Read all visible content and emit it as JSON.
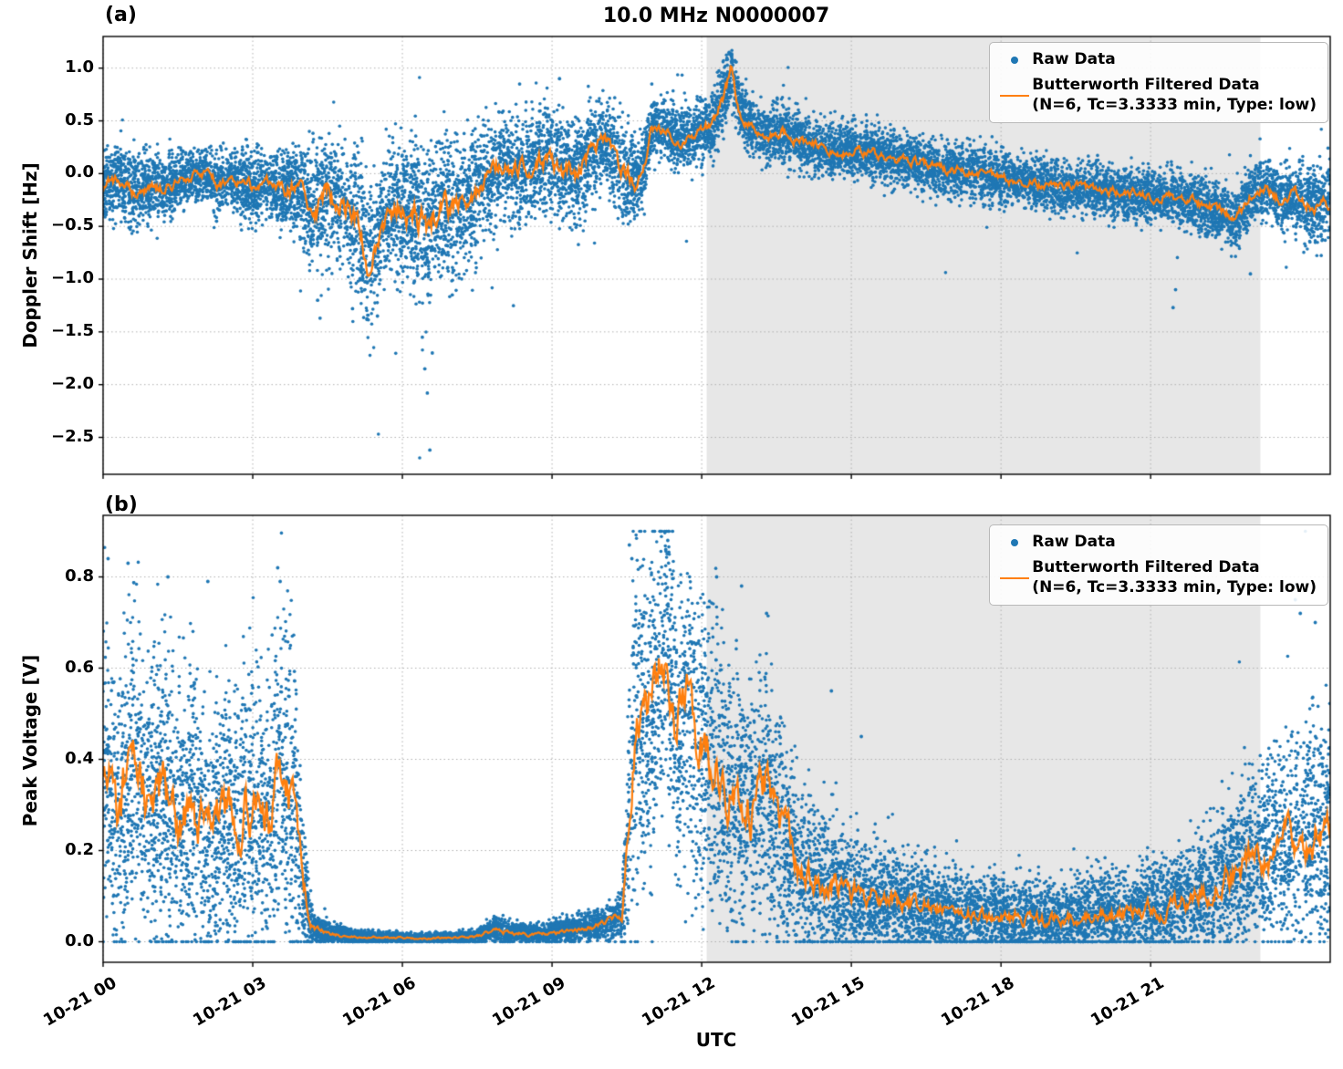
{
  "title": "10.0 MHz N0000007",
  "xlabel": "UTC",
  "legend": {
    "raw": "Raw Data",
    "filtered_line1": "Butterworth Filtered Data",
    "filtered_line2": "(N=6, Tc=3.3333 min, Type: low)"
  },
  "colors": {
    "raw": "#1f77b4",
    "filtered": "#ff7f0e",
    "shade": "#e7e7e7",
    "grid": "#b0b0b0",
    "axis": "#000000"
  },
  "chart_data": [
    {
      "id": "doppler-shift",
      "tag": "(a)",
      "type": "scatter+line",
      "title": "10.0 MHz N0000007",
      "ylabel": "Doppler Shift [Hz]",
      "xlim": [
        0,
        24.6
      ],
      "ylim": [
        -2.85,
        1.3
      ],
      "x_ticks": [
        0,
        3,
        6,
        9,
        12,
        15,
        18,
        21
      ],
      "x_tick_labels": [
        "10-21 00",
        "10-21 03",
        "10-21 06",
        "10-21 09",
        "10-21 12",
        "10-21 15",
        "10-21 18",
        "10-21 21"
      ],
      "show_x_tick_labels": false,
      "y_ticks": [
        1.0,
        0.5,
        0.0,
        -0.5,
        -1.0,
        -1.5,
        -2.0,
        -2.5
      ],
      "y_tick_labels": [
        "1.0",
        "0.5",
        "0.0",
        "−0.5",
        "−1.0",
        "−1.5",
        "−2.0",
        "−2.5"
      ],
      "shaded_region": {
        "x_start": 12.1,
        "x_end": 23.2
      },
      "series": [
        {
          "name": "Raw Data",
          "kind": "scatter"
        },
        {
          "name": "Butterworth Filtered Data",
          "kind": "line",
          "filter": "N=6, Tc=3.3333 min, Type: low"
        }
      ],
      "profile": {
        "x": [
          0,
          0.3,
          0.6,
          1.0,
          1.3,
          1.6,
          2.0,
          2.3,
          2.6,
          3.0,
          3.3,
          3.6,
          3.9,
          4.2,
          4.5,
          4.8,
          5.1,
          5.35,
          5.6,
          5.9,
          6.2,
          6.5,
          6.8,
          7.1,
          7.4,
          7.7,
          8.0,
          8.3,
          8.6,
          8.9,
          9.2,
          9.5,
          9.8,
          10.1,
          10.4,
          10.7,
          10.85,
          11.0,
          11.3,
          11.6,
          11.9,
          12.2,
          12.45,
          12.6,
          12.75,
          13.0,
          13.3,
          13.6,
          14.0,
          14.4,
          14.8,
          15.2,
          15.6,
          16.0,
          16.4,
          16.8,
          17.2,
          17.6,
          18.0,
          18.4,
          18.8,
          19.2,
          19.6,
          20.0,
          20.4,
          20.8,
          21.2,
          21.6,
          22.0,
          22.4,
          22.7,
          23.0,
          23.3,
          23.6,
          24.0,
          24.3,
          24.6
        ],
        "filtered_y": [
          -0.15,
          -0.05,
          -0.2,
          -0.1,
          -0.15,
          -0.05,
          0.0,
          -0.1,
          -0.05,
          -0.15,
          -0.1,
          -0.2,
          -0.1,
          -0.35,
          -0.2,
          -0.3,
          -0.45,
          -0.85,
          -0.45,
          -0.3,
          -0.4,
          -0.5,
          -0.3,
          -0.35,
          -0.2,
          -0.1,
          0.1,
          0.0,
          0.1,
          0.15,
          0.05,
          0.0,
          0.2,
          0.3,
          0.05,
          -0.1,
          0.1,
          0.45,
          0.4,
          0.3,
          0.4,
          0.45,
          0.75,
          1.0,
          0.6,
          0.45,
          0.35,
          0.4,
          0.3,
          0.25,
          0.2,
          0.22,
          0.15,
          0.12,
          0.1,
          0.05,
          0.02,
          0.0,
          -0.05,
          -0.08,
          -0.1,
          -0.12,
          -0.15,
          -0.15,
          -0.18,
          -0.2,
          -0.22,
          -0.25,
          -0.3,
          -0.35,
          -0.45,
          -0.2,
          -0.1,
          -0.25,
          -0.2,
          -0.3,
          -0.25
        ],
        "scatter_spread": [
          0.15,
          0.15,
          0.18,
          0.15,
          0.15,
          0.12,
          0.12,
          0.15,
          0.15,
          0.18,
          0.15,
          0.2,
          0.2,
          0.3,
          0.3,
          0.3,
          0.35,
          0.3,
          0.3,
          0.32,
          0.35,
          0.42,
          0.32,
          0.3,
          0.28,
          0.25,
          0.25,
          0.25,
          0.25,
          0.25,
          0.25,
          0.25,
          0.22,
          0.2,
          0.25,
          0.2,
          0.15,
          0.13,
          0.14,
          0.14,
          0.14,
          0.15,
          0.18,
          0.14,
          0.14,
          0.13,
          0.13,
          0.13,
          0.13,
          0.12,
          0.12,
          0.12,
          0.12,
          0.12,
          0.12,
          0.12,
          0.12,
          0.12,
          0.12,
          0.12,
          0.12,
          0.12,
          0.12,
          0.12,
          0.12,
          0.12,
          0.12,
          0.13,
          0.14,
          0.14,
          0.15,
          0.14,
          0.14,
          0.15,
          0.17,
          0.18,
          0.18
        ]
      },
      "outliers": [
        [
          6.55,
          -2.62
        ],
        [
          6.5,
          -2.08
        ],
        [
          6.45,
          -1.85
        ],
        [
          6.6,
          -1.7
        ],
        [
          6.4,
          -1.55
        ],
        [
          4.35,
          -1.37
        ],
        [
          4.3,
          -1.2
        ],
        [
          5.0,
          -1.28
        ],
        [
          5.5,
          -1.35
        ],
        [
          5.9,
          -1.1
        ],
        [
          7.0,
          -1.15
        ],
        [
          21.45,
          -1.27
        ],
        [
          21.5,
          -1.1
        ],
        [
          23.0,
          -0.95
        ],
        [
          12.55,
          1.15
        ],
        [
          12.6,
          1.12
        ],
        [
          12.5,
          1.08
        ],
        [
          9.15,
          0.9
        ],
        [
          11.0,
          0.85
        ],
        [
          8.35,
          0.85
        ]
      ],
      "points_per_hour": 550,
      "tail_prob": 0.006,
      "tail_neg_range": [
        3.3,
        11.2
      ],
      "seed": 42
    },
    {
      "id": "peak-voltage",
      "tag": "(b)",
      "type": "scatter+line",
      "ylabel": "Peak Voltage [V]",
      "xlim": [
        0,
        24.6
      ],
      "ylim": [
        -0.045,
        0.935
      ],
      "x_ticks": [
        0,
        3,
        6,
        9,
        12,
        15,
        18,
        21
      ],
      "x_tick_labels": [
        "10-21 00",
        "10-21 03",
        "10-21 06",
        "10-21 09",
        "10-21 12",
        "10-21 15",
        "10-21 18",
        "10-21 21"
      ],
      "show_x_tick_labels": true,
      "y_ticks": [
        0.0,
        0.2,
        0.4,
        0.6,
        0.8
      ],
      "y_tick_labels": [
        "0.0",
        "0.2",
        "0.4",
        "0.6",
        "0.8"
      ],
      "shaded_region": {
        "x_start": 12.1,
        "x_end": 23.2
      },
      "series": [
        {
          "name": "Raw Data",
          "kind": "scatter"
        },
        {
          "name": "Butterworth Filtered Data",
          "kind": "line",
          "filter": "N=6, Tc=3.3333 min, Type: low"
        }
      ],
      "profile": {
        "x": [
          0,
          0.3,
          0.6,
          0.9,
          1.2,
          1.5,
          1.8,
          2.1,
          2.4,
          2.7,
          3.0,
          3.3,
          3.6,
          3.85,
          4.0,
          4.2,
          4.5,
          5.0,
          5.5,
          6.0,
          6.5,
          7.0,
          7.5,
          7.9,
          8.1,
          8.4,
          8.7,
          9.0,
          9.3,
          9.6,
          9.9,
          10.2,
          10.4,
          10.55,
          10.7,
          10.9,
          11.1,
          11.3,
          11.5,
          11.7,
          11.9,
          12.1,
          12.4,
          12.7,
          13.0,
          13.3,
          13.6,
          13.9,
          14.2,
          14.6,
          15.0,
          15.4,
          15.8,
          16.2,
          16.6,
          17.0,
          17.4,
          17.8,
          18.2,
          18.6,
          19.0,
          19.4,
          19.8,
          20.2,
          20.6,
          21.0,
          21.4,
          21.8,
          22.2,
          22.6,
          23.0,
          23.4,
          23.8,
          24.2,
          24.6
        ],
        "filtered_y": [
          0.38,
          0.28,
          0.42,
          0.3,
          0.35,
          0.25,
          0.3,
          0.22,
          0.28,
          0.25,
          0.3,
          0.25,
          0.38,
          0.3,
          0.12,
          0.03,
          0.018,
          0.012,
          0.01,
          0.008,
          0.008,
          0.008,
          0.012,
          0.03,
          0.02,
          0.018,
          0.015,
          0.02,
          0.025,
          0.03,
          0.035,
          0.045,
          0.06,
          0.3,
          0.5,
          0.45,
          0.55,
          0.65,
          0.45,
          0.5,
          0.4,
          0.42,
          0.35,
          0.3,
          0.28,
          0.35,
          0.25,
          0.18,
          0.14,
          0.12,
          0.1,
          0.1,
          0.09,
          0.08,
          0.07,
          0.065,
          0.06,
          0.06,
          0.055,
          0.05,
          0.05,
          0.055,
          0.06,
          0.06,
          0.065,
          0.07,
          0.08,
          0.1,
          0.12,
          0.15,
          0.18,
          0.2,
          0.22,
          0.24,
          0.26
        ],
        "scatter_spread": [
          0.18,
          0.16,
          0.18,
          0.16,
          0.17,
          0.15,
          0.16,
          0.14,
          0.15,
          0.15,
          0.16,
          0.15,
          0.18,
          0.16,
          0.08,
          0.02,
          0.012,
          0.008,
          0.007,
          0.006,
          0.006,
          0.006,
          0.008,
          0.015,
          0.012,
          0.01,
          0.01,
          0.012,
          0.014,
          0.015,
          0.016,
          0.02,
          0.03,
          0.15,
          0.18,
          0.18,
          0.17,
          0.16,
          0.17,
          0.17,
          0.17,
          0.16,
          0.15,
          0.14,
          0.13,
          0.14,
          0.12,
          0.1,
          0.09,
          0.08,
          0.07,
          0.065,
          0.06,
          0.055,
          0.05,
          0.048,
          0.045,
          0.045,
          0.042,
          0.04,
          0.04,
          0.042,
          0.045,
          0.045,
          0.048,
          0.05,
          0.055,
          0.06,
          0.07,
          0.08,
          0.09,
          0.1,
          0.11,
          0.12,
          0.13
        ]
      },
      "outliers": [
        [
          11.32,
          0.88
        ],
        [
          11.28,
          0.86
        ],
        [
          10.55,
          0.87
        ],
        [
          10.6,
          0.84
        ],
        [
          0.1,
          0.84
        ],
        [
          0.5,
          0.83
        ],
        [
          1.3,
          0.8
        ],
        [
          2.1,
          0.79
        ],
        [
          3.5,
          0.82
        ],
        [
          3.55,
          0.79
        ],
        [
          12.3,
          0.8
        ],
        [
          12.8,
          0.78
        ],
        [
          13.3,
          0.72
        ],
        [
          23.9,
          0.75
        ],
        [
          24.0,
          0.72
        ],
        [
          24.3,
          0.7
        ],
        [
          14.6,
          0.55
        ],
        [
          15.2,
          0.45
        ]
      ],
      "points_per_hour": 550,
      "tail_prob": 0.004,
      "y_clamp": [
        0.0,
        0.9
      ],
      "seed": 7
    }
  ]
}
